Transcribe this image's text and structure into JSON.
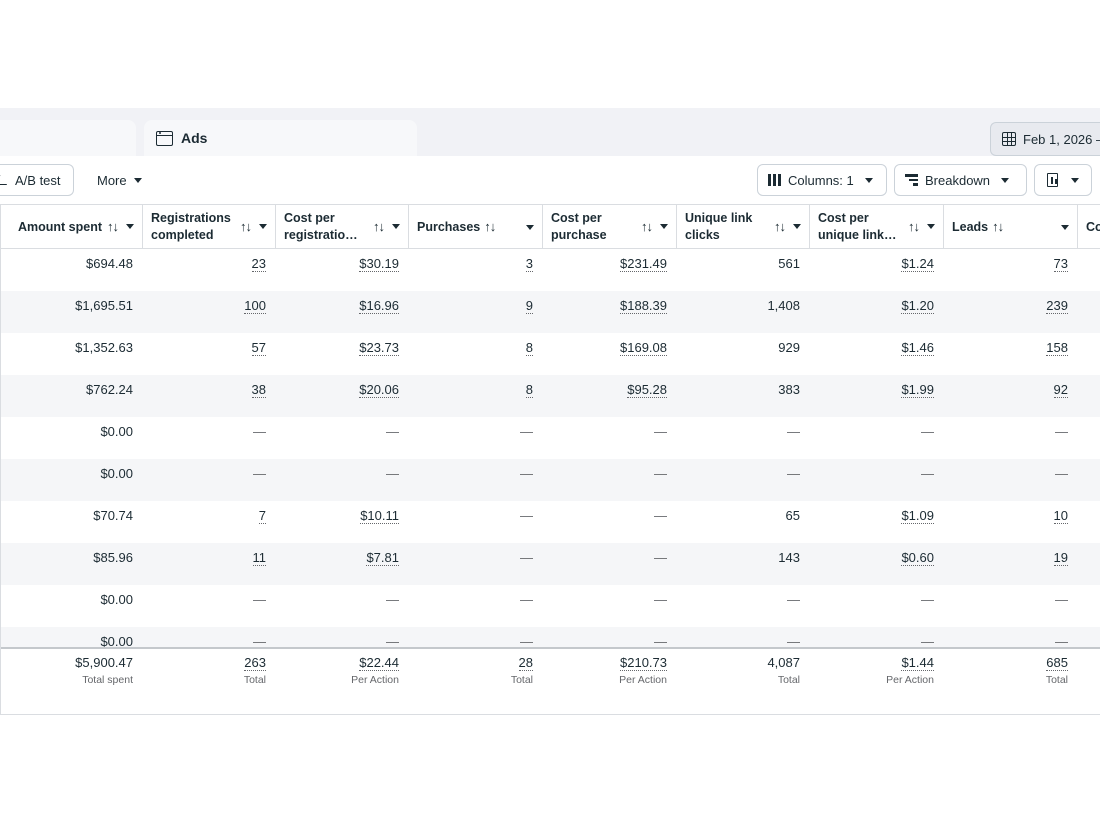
{
  "tabs": {
    "ads_label": "Ads"
  },
  "date_range": {
    "label": "Feb 1, 2026 –"
  },
  "toolbar": {
    "ab_test": "A/B test",
    "more": "More",
    "columns": "Columns: 1",
    "breakdown": "Breakdown"
  },
  "table": {
    "headers": [
      "Amount spent",
      "Registrations completed",
      "Cost per registratio…",
      "Purchases",
      "Cost per purchase",
      "Unique link clicks",
      "Cost per unique link…",
      "Leads",
      "Co"
    ],
    "rows": [
      [
        "$694.48",
        "23",
        "$30.19",
        "3",
        "$231.49",
        "561",
        "$1.24",
        "73"
      ],
      [
        "$1,695.51",
        "100",
        "$16.96",
        "9",
        "$188.39",
        "1,408",
        "$1.20",
        "239"
      ],
      [
        "$1,352.63",
        "57",
        "$23.73",
        "8",
        "$169.08",
        "929",
        "$1.46",
        "158"
      ],
      [
        "$762.24",
        "38",
        "$20.06",
        "8",
        "$95.28",
        "383",
        "$1.99",
        "92"
      ],
      [
        "$0.00",
        "—",
        "—",
        "—",
        "—",
        "—",
        "—",
        "—"
      ],
      [
        "$0.00",
        "—",
        "—",
        "—",
        "—",
        "—",
        "—",
        "—"
      ],
      [
        "$70.74",
        "7",
        "$10.11",
        "—",
        "—",
        "65",
        "$1.09",
        "10"
      ],
      [
        "$85.96",
        "11",
        "$7.81",
        "—",
        "—",
        "143",
        "$0.60",
        "19"
      ],
      [
        "$0.00",
        "—",
        "—",
        "—",
        "—",
        "—",
        "—",
        "—"
      ],
      [
        "$0.00",
        "—",
        "—",
        "—",
        "—",
        "—",
        "—",
        "—"
      ]
    ],
    "totals": [
      {
        "value": "$5,900.47",
        "label": "Total spent"
      },
      {
        "value": "263",
        "label": "Total"
      },
      {
        "value": "$22.44",
        "label": "Per Action"
      },
      {
        "value": "28",
        "label": "Total"
      },
      {
        "value": "$210.73",
        "label": "Per Action"
      },
      {
        "value": "4,087",
        "label": "Total"
      },
      {
        "value": "$1.44",
        "label": "Per Action"
      },
      {
        "value": "685",
        "label": "Total"
      }
    ]
  }
}
